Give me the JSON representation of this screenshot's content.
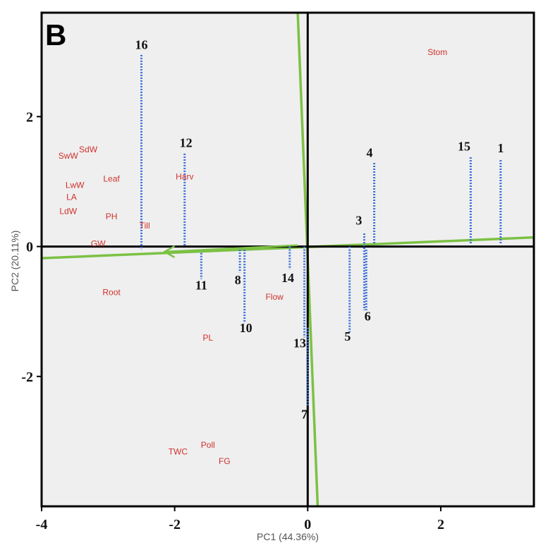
{
  "panel_label": "B",
  "chart_data": {
    "type": "scatter",
    "subtype": "biplot",
    "xlabel": "PC1 (44.36%)",
    "ylabel": "PC2 (20.11%)",
    "xlim": [
      -4.0,
      3.4
    ],
    "ylim": [
      -4.0,
      3.6
    ],
    "x_ticks": [
      {
        "value": -4,
        "label": "-4"
      },
      {
        "value": -2,
        "label": "-2"
      },
      {
        "value": 0,
        "label": "0"
      },
      {
        "value": 2,
        "label": "2"
      }
    ],
    "y_ticks": [
      {
        "value": 2,
        "label": "2"
      },
      {
        "value": 0,
        "label": "0"
      },
      {
        "value": -2,
        "label": "-2"
      }
    ],
    "colors": {
      "plot_background": "#efefef",
      "frame": "#000000",
      "variable_text": "#d0312d",
      "observation_line": "#3a6fd8",
      "green_axis": "#7cc144"
    },
    "variables": [
      {
        "name": "Stom",
        "x": 1.95,
        "y": 2.95
      },
      {
        "name": "SdW",
        "x": -3.3,
        "y": 1.45
      },
      {
        "name": "SwW",
        "x": -3.6,
        "y": 1.35
      },
      {
        "name": "Leaf",
        "x": -2.95,
        "y": 1.0
      },
      {
        "name": "Harv",
        "x": -1.85,
        "y": 1.03
      },
      {
        "name": "LwW",
        "x": -3.5,
        "y": 0.9
      },
      {
        "name": "LA",
        "x": -3.55,
        "y": 0.72
      },
      {
        "name": "LdW",
        "x": -3.6,
        "y": 0.5
      },
      {
        "name": "PH",
        "x": -2.95,
        "y": 0.42
      },
      {
        "name": "Till",
        "x": -2.45,
        "y": 0.28
      },
      {
        "name": "GW",
        "x": -3.15,
        "y": 0.0
      },
      {
        "name": "Root",
        "x": -2.95,
        "y": -0.75
      },
      {
        "name": "Flow",
        "x": -0.5,
        "y": -0.82
      },
      {
        "name": "PL",
        "x": -1.5,
        "y": -1.45
      },
      {
        "name": "Poll",
        "x": -1.5,
        "y": -3.1
      },
      {
        "name": "TWC",
        "x": -1.95,
        "y": -3.2
      },
      {
        "name": "FG",
        "x": -1.25,
        "y": -3.35
      }
    ],
    "observations": [
      {
        "label": "1",
        "x": 2.9,
        "y0": 0.05,
        "y1": 1.35,
        "lx": 2.9,
        "ly": 1.45
      },
      {
        "label": "15",
        "x": 2.45,
        "y0": 0.05,
        "y1": 1.38,
        "lx": 2.35,
        "ly": 1.48
      },
      {
        "label": "4",
        "x": 1.0,
        "y0": 0.05,
        "y1": 1.3,
        "lx": 0.93,
        "ly": 1.38
      },
      {
        "label": "3",
        "x": 0.85,
        "y0": 0.2,
        "y1": -0.98,
        "lx": 0.77,
        "ly": 0.34
      },
      {
        "label": "6",
        "x": 0.88,
        "y0": -0.05,
        "y1": -0.98,
        "lx": 0.9,
        "ly": -1.14
      },
      {
        "label": "5",
        "x": 0.63,
        "y0": 0.0,
        "y1": -1.32,
        "lx": 0.6,
        "ly": -1.45
      },
      {
        "label": "16",
        "x": -2.5,
        "y0": 2.95,
        "y1": -0.05,
        "lx": -2.5,
        "ly": 3.04
      },
      {
        "label": "12",
        "x": -1.85,
        "y0": 1.43,
        "y1": 0.0,
        "lx": -1.83,
        "ly": 1.53
      },
      {
        "label": "11",
        "x": -1.6,
        "y0": -0.1,
        "y1": -0.5,
        "lx": -1.6,
        "ly": -0.66
      },
      {
        "label": "8",
        "x": -1.02,
        "y0": -0.05,
        "y1": -0.4,
        "lx": -1.05,
        "ly": -0.58
      },
      {
        "label": "10",
        "x": -0.95,
        "y0": -0.05,
        "y1": -1.18,
        "lx": -0.93,
        "ly": -1.32
      },
      {
        "label": "14",
        "x": -0.27,
        "y0": 0.0,
        "y1": -0.35,
        "lx": -0.3,
        "ly": -0.55
      },
      {
        "label": "13",
        "x": -0.05,
        "y0": 0.0,
        "y1": -1.4,
        "lx": -0.12,
        "ly": -1.55
      },
      {
        "label": "7",
        "x": 0.0,
        "y0": -1.25,
        "y1": -2.45,
        "lx": -0.05,
        "ly": -2.65
      }
    ],
    "green_axes": [
      {
        "x1": -4.0,
        "y1": -0.18,
        "x2": 3.4,
        "y2": 0.14
      },
      {
        "x1": -0.15,
        "y1": 3.6,
        "x2": 0.15,
        "y2": -4.0
      }
    ],
    "arrow": {
      "x1": -0.15,
      "y1": 0.02,
      "x2": -2.15,
      "y2": -0.08
    }
  }
}
